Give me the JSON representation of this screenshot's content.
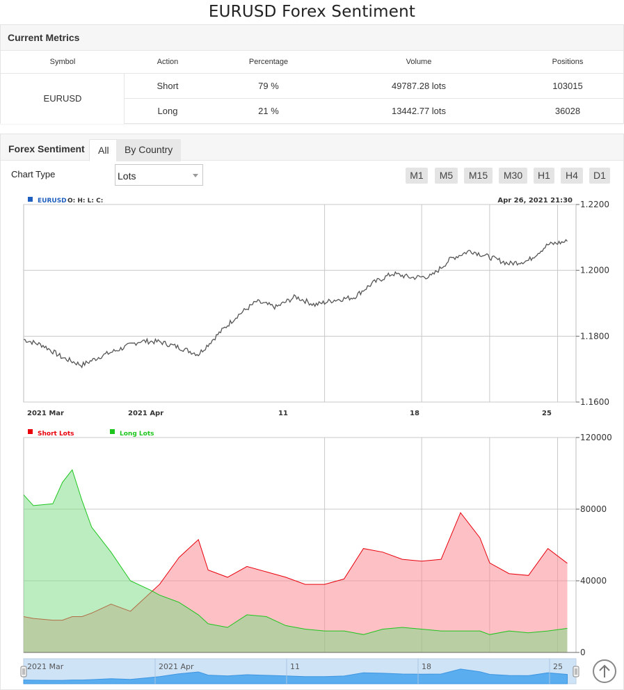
{
  "title": "EURUSD Forex Sentiment",
  "metrics": {
    "heading": "Current Metrics",
    "columns": [
      "Symbol",
      "Action",
      "Percentage",
      "Volume",
      "Positions"
    ],
    "symbol": "EURUSD",
    "rows": [
      {
        "action": "Short",
        "percentage": "79 %",
        "volume": "49787.28 lots",
        "positions": "103015"
      },
      {
        "action": "Long",
        "percentage": "21 %",
        "volume": "13442.77 lots",
        "positions": "36028"
      }
    ]
  },
  "sentiment": {
    "heading": "Forex Sentiment",
    "tabs": [
      "All",
      "By Country"
    ],
    "active_tab": "All",
    "chart_type_label": "Chart Type",
    "chart_type_value": "Lots",
    "timeframes": [
      "M1",
      "M5",
      "M15",
      "M30",
      "H1",
      "H4",
      "D1"
    ]
  },
  "chart_data": [
    {
      "type": "line",
      "legend": {
        "symbol": "EURUSD",
        "ohlc": "O: H: L: C:"
      },
      "timestamp": "Apr 26, 2021 21:30",
      "x_tick_labels": [
        "2021 Mar",
        "2021 Apr",
        "11",
        "18",
        "25"
      ],
      "ylim": [
        1.16,
        1.22
      ],
      "y_ticks": [
        "1.2200",
        "1.2000",
        "1.1800",
        "1.1600"
      ],
      "grid": true,
      "series": [
        {
          "name": "EURUSD",
          "color": "#555555",
          "x": [
            "2021-03-01",
            "2021-03-03",
            "2021-03-05",
            "2021-03-07",
            "2021-03-09",
            "2021-03-11",
            "2021-03-13",
            "2021-03-15",
            "2021-03-17",
            "2021-03-19",
            "2021-03-21",
            "2021-03-23",
            "2021-03-25",
            "2021-03-27",
            "2021-03-29",
            "2021-03-31",
            "2021-04-02",
            "2021-04-04",
            "2021-04-06",
            "2021-04-08",
            "2021-04-10",
            "2021-04-12",
            "2021-04-14",
            "2021-04-16",
            "2021-04-18",
            "2021-04-20",
            "2021-04-22",
            "2021-04-24",
            "2021-04-26"
          ],
          "y": [
            1.179,
            1.1772,
            1.1735,
            1.1712,
            1.174,
            1.1762,
            1.1785,
            1.1783,
            1.1766,
            1.1745,
            1.1805,
            1.1862,
            1.1905,
            1.1888,
            1.192,
            1.1895,
            1.191,
            1.1918,
            1.1962,
            1.199,
            1.1978,
            1.1982,
            1.2035,
            1.206,
            1.204,
            1.202,
            1.203,
            1.2078,
            1.2088
          ]
        }
      ]
    },
    {
      "type": "area",
      "x_tick_labels": [
        "2021 Mar",
        "2021 Apr",
        "11",
        "18",
        "25"
      ],
      "ylim": [
        0,
        120000
      ],
      "y_ticks": [
        "120000",
        "80000",
        "40000",
        "0"
      ],
      "grid": true,
      "legend_placement": "top-left",
      "x": [
        "2021-03-01",
        "2021-03-02",
        "2021-03-04",
        "2021-03-05",
        "2021-03-06",
        "2021-03-07",
        "2021-03-08",
        "2021-03-10",
        "2021-03-12",
        "2021-03-14",
        "2021-03-15",
        "2021-03-17",
        "2021-03-19",
        "2021-03-20",
        "2021-03-22",
        "2021-03-24",
        "2021-03-26",
        "2021-03-28",
        "2021-03-30",
        "2021-04-01",
        "2021-04-03",
        "2021-04-05",
        "2021-04-07",
        "2021-04-09",
        "2021-04-11",
        "2021-04-13",
        "2021-04-15",
        "2021-04-17",
        "2021-04-18",
        "2021-04-20",
        "2021-04-22",
        "2021-04-24",
        "2021-04-26"
      ],
      "series": [
        {
          "name": "Short Lots",
          "color": "#e8000b",
          "values": [
            20000,
            19000,
            18000,
            18000,
            20000,
            20000,
            22000,
            27000,
            23000,
            33000,
            38000,
            53000,
            63000,
            46000,
            42000,
            48000,
            45000,
            42000,
            38000,
            38000,
            41000,
            58000,
            56000,
            52000,
            51000,
            52000,
            78000,
            64000,
            50000,
            44000,
            43000,
            58000,
            49787
          ]
        },
        {
          "name": "Long Lots",
          "color": "#1dc51d",
          "values": [
            88000,
            82000,
            83000,
            95000,
            102000,
            85000,
            70000,
            56000,
            40000,
            35000,
            32000,
            28000,
            21000,
            16000,
            14000,
            21000,
            20000,
            15000,
            13000,
            12000,
            12000,
            10000,
            13000,
            14000,
            13000,
            12000,
            12000,
            12000,
            10000,
            12000,
            11000,
            12000,
            13443
          ]
        }
      ]
    }
  ]
}
